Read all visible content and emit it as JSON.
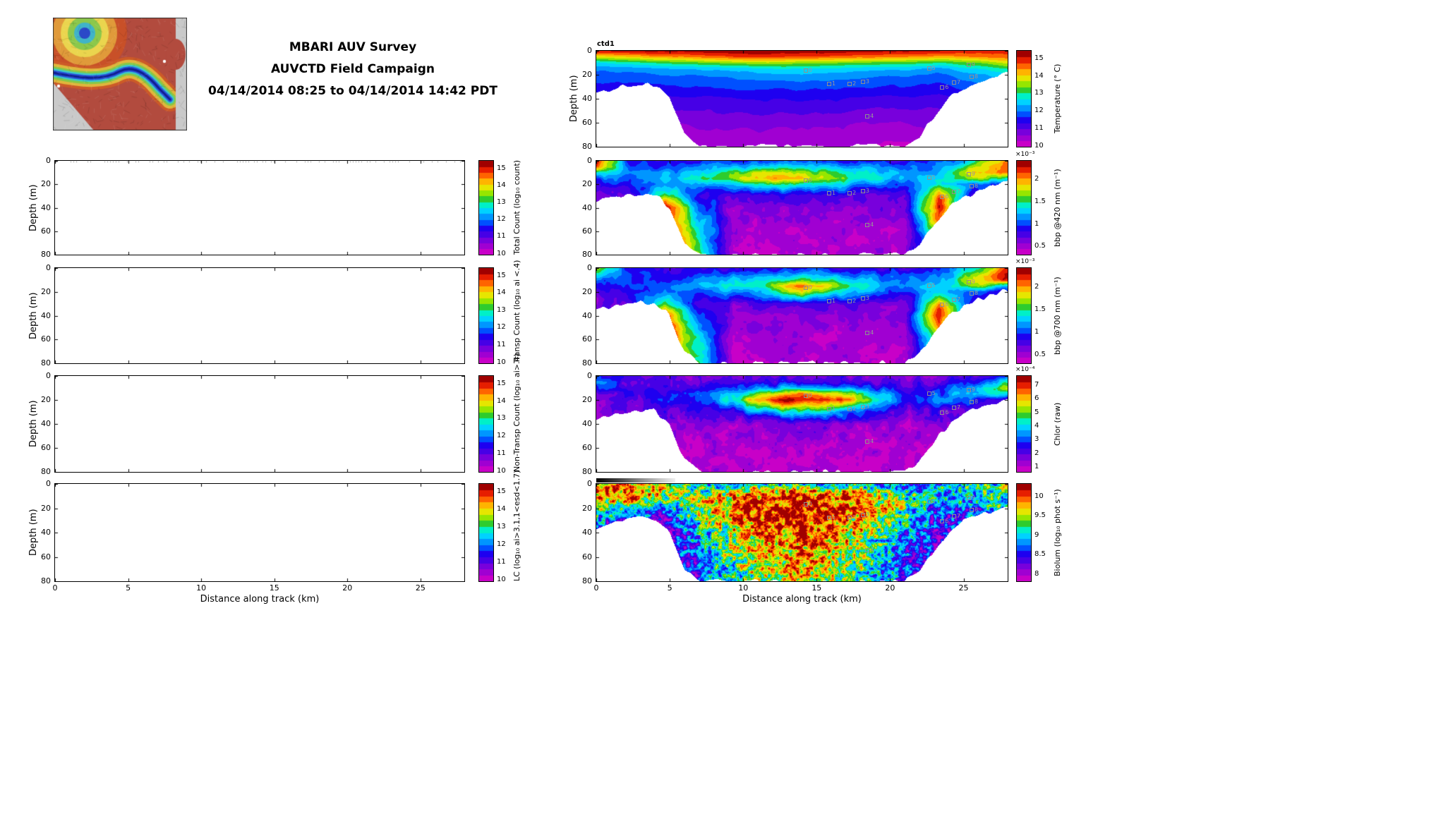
{
  "title": {
    "line1": "MBARI AUV Survey",
    "line2": "AUVCTD Field Campaign",
    "line3": "04/14/2014 08:25 to 04/14/2014 14:42 PDT"
  },
  "chart_data": {
    "type": "heatmap",
    "x_label": "Distance along track (km)",
    "y_label": "Depth (m)",
    "x_ticks": [
      0,
      5,
      10,
      15,
      20,
      25
    ],
    "y_ticks": [
      0,
      20,
      40,
      60,
      80
    ],
    "x_range": [
      0,
      28
    ],
    "y_range": [
      0,
      80
    ],
    "colormap": [
      "#C800C8",
      "#A000D2",
      "#7800DC",
      "#4600E6",
      "#1E00F0",
      "#0050FF",
      "#0096FF",
      "#00D2FF",
      "#00F0C8",
      "#2ECC2E",
      "#96E600",
      "#E6E600",
      "#FFB400",
      "#FF6400",
      "#E61E00",
      "#A00000"
    ],
    "grid_kms": [
      0,
      2.33,
      4.67,
      7,
      9.33,
      11.67,
      14,
      16.33,
      18.67,
      21,
      23.33,
      25.67,
      28
    ],
    "grid_depths": [
      0,
      5,
      10,
      15,
      20,
      30,
      40,
      60,
      80
    ],
    "bottom_profile": [
      36,
      32,
      29,
      28,
      29,
      40,
      70,
      80,
      80,
      80,
      80,
      80,
      80,
      80,
      80,
      80,
      80,
      80,
      80,
      80,
      80,
      80,
      72,
      55,
      40,
      31,
      26,
      22,
      19
    ],
    "left_panels": [
      {
        "id": "total-count",
        "colorbar_label": "Total Count (log₁₀ count)",
        "colorbar_ticks": [
          10,
          11,
          12,
          13,
          14,
          15
        ],
        "colorbar_range": [
          9.9,
          15.4
        ],
        "empty": true,
        "surface_dots": true
      },
      {
        "id": "transp-count",
        "colorbar_label": "Transp Count (log₁₀ ai <.4)",
        "colorbar_ticks": [
          10,
          11,
          12,
          13,
          14,
          15
        ],
        "colorbar_range": [
          9.9,
          15.4
        ],
        "empty": true,
        "surface_dots": false
      },
      {
        "id": "nontransp-count",
        "colorbar_label": "Non-Transp Count (log₁₀ ai>.4)",
        "colorbar_ticks": [
          10,
          11,
          12,
          13,
          14,
          15
        ],
        "colorbar_range": [
          9.9,
          15.4
        ],
        "empty": true,
        "surface_dots": false
      },
      {
        "id": "lc-count",
        "colorbar_label": "LC (log₁₀ ai>3.1,1<esd<1.7)",
        "colorbar_ticks": [
          10,
          11,
          12,
          13,
          14,
          15
        ],
        "colorbar_range": [
          9.9,
          15.4
        ],
        "empty": true,
        "surface_dots": false
      }
    ],
    "right_panels": [
      {
        "id": "temperature",
        "title": "ctd1",
        "colorbar_label": "Temperature (° C)",
        "exponent": "",
        "colorbar_ticks": [
          10,
          11,
          12,
          13,
          14,
          15
        ],
        "colorbar_range": [
          9.9,
          15.4
        ],
        "range": [
          10,
          15.5
        ],
        "noise_amp": 0.06,
        "noise_freq": 26,
        "seed": 1,
        "grid": [
          [
            15.2,
            15.3,
            15.3,
            15.4,
            15.4,
            15.5,
            15.4,
            15.4,
            15.3,
            15.3,
            15.2,
            15.1,
            15.0
          ],
          [
            13.9,
            14.2,
            14.4,
            14.6,
            14.8,
            14.9,
            14.8,
            14.7,
            14.6,
            14.5,
            14.3,
            14.5,
            14.7
          ],
          [
            12.7,
            13.0,
            13.2,
            13.4,
            13.6,
            13.7,
            13.6,
            13.5,
            13.4,
            13.3,
            13.1,
            13.4,
            13.9
          ],
          [
            12.1,
            12.3,
            12.4,
            12.5,
            12.6,
            12.7,
            12.8,
            12.7,
            12.6,
            12.5,
            12.3,
            12.7,
            13.1
          ],
          [
            11.9,
            12.0,
            12.1,
            12.1,
            12.2,
            12.3,
            12.4,
            12.3,
            12.2,
            12.1,
            12.0,
            12.3,
            12.6
          ],
          [
            11.6,
            11.6,
            11.7,
            11.7,
            11.8,
            11.8,
            11.8,
            11.8,
            11.7,
            11.7,
            11.6,
            11.9,
            12.1
          ],
          [
            11.2,
            11.2,
            11.3,
            11.3,
            11.3,
            11.4,
            11.4,
            11.4,
            11.3,
            11.3,
            11.3,
            11.5,
            11.7
          ],
          [
            10.7,
            10.7,
            10.7,
            10.8,
            10.8,
            10.8,
            10.8,
            10.8,
            10.7,
            10.7,
            10.8,
            10.9,
            11.0
          ],
          [
            10.3,
            10.3,
            10.3,
            10.4,
            10.4,
            10.4,
            10.4,
            10.4,
            10.3,
            10.3,
            10.4,
            10.4,
            10.5
          ]
        ]
      },
      {
        "id": "bbp420",
        "title": "",
        "colorbar_label": "bbp @420 nm (m⁻¹)",
        "exponent": "×10⁻³",
        "colorbar_ticks": [
          0.5,
          1,
          1.5,
          2
        ],
        "colorbar_range": [
          0.3,
          2.4
        ],
        "range": [
          0.3,
          2.6
        ],
        "noise_amp": 0.12,
        "noise_freq": 14,
        "seed": 2,
        "grid": [
          [
            2.4,
            1.0,
            0.9,
            0.9,
            1.0,
            1.0,
            1.1,
            1.0,
            0.9,
            0.9,
            1.0,
            1.5,
            2.3
          ],
          [
            2.2,
            1.1,
            1.0,
            1.2,
            1.3,
            1.4,
            1.4,
            1.3,
            1.2,
            1.1,
            1.2,
            1.8,
            2.4
          ],
          [
            1.5,
            1.2,
            1.2,
            1.4,
            1.7,
            1.9,
            1.8,
            1.6,
            1.4,
            1.2,
            1.3,
            2.0,
            2.3
          ],
          [
            1.1,
            1.1,
            1.3,
            1.5,
            1.8,
            2.1,
            2.0,
            1.7,
            1.5,
            1.2,
            1.5,
            1.9,
            1.5
          ],
          [
            0.9,
            1.0,
            1.2,
            1.2,
            1.4,
            1.6,
            1.5,
            1.4,
            1.2,
            1.0,
            1.6,
            1.2,
            0.9
          ],
          [
            0.7,
            0.8,
            1.8,
            0.9,
            0.8,
            0.8,
            0.8,
            0.8,
            0.7,
            0.7,
            2.3,
            0.8,
            0.7
          ],
          [
            0.6,
            0.7,
            2.5,
            1.2,
            0.6,
            0.6,
            0.6,
            0.6,
            0.6,
            0.6,
            2.5,
            0.7,
            0.6
          ],
          [
            0.5,
            0.6,
            2.5,
            1.5,
            0.5,
            0.5,
            0.5,
            0.5,
            0.5,
            0.5,
            2.0,
            0.6,
            0.5
          ],
          [
            0.45,
            0.5,
            2.3,
            1.8,
            0.45,
            0.45,
            0.45,
            0.45,
            0.45,
            0.5,
            1.5,
            0.6,
            0.5
          ]
        ]
      },
      {
        "id": "bbp700",
        "title": "",
        "colorbar_label": "bbp @700 nm (m⁻¹)",
        "exponent": "×10⁻³",
        "colorbar_ticks": [
          0.5,
          1,
          1.5,
          2
        ],
        "colorbar_range": [
          0.3,
          2.4
        ],
        "range": [
          0.3,
          2.6
        ],
        "noise_amp": 0.12,
        "noise_freq": 14,
        "seed": 3,
        "grid": [
          [
            2.0,
            0.9,
            0.8,
            0.8,
            0.9,
            0.9,
            1.0,
            0.9,
            0.9,
            0.8,
            1.0,
            1.4,
            2.4
          ],
          [
            1.6,
            1.0,
            0.9,
            1.0,
            1.1,
            1.2,
            1.3,
            1.2,
            1.1,
            1.0,
            1.1,
            1.7,
            2.5
          ],
          [
            1.2,
            1.0,
            1.0,
            1.2,
            1.3,
            1.5,
            1.7,
            1.5,
            1.3,
            1.1,
            1.2,
            1.9,
            2.4
          ],
          [
            1.0,
            1.0,
            1.1,
            1.3,
            1.5,
            1.7,
            2.3,
            1.8,
            1.4,
            1.1,
            1.4,
            1.8,
            1.4
          ],
          [
            0.8,
            0.9,
            1.1,
            1.1,
            1.2,
            1.4,
            2.0,
            1.5,
            1.2,
            0.9,
            1.5,
            1.1,
            0.9
          ],
          [
            0.6,
            0.8,
            1.6,
            0.8,
            0.7,
            0.8,
            0.9,
            0.8,
            0.7,
            0.6,
            2.2,
            0.8,
            0.6
          ],
          [
            0.55,
            0.7,
            2.4,
            1.1,
            0.6,
            0.6,
            0.6,
            0.6,
            0.6,
            0.55,
            2.5,
            0.7,
            0.55
          ],
          [
            0.5,
            0.6,
            2.5,
            1.4,
            0.5,
            0.5,
            0.5,
            0.5,
            0.5,
            0.5,
            1.9,
            0.6,
            0.5
          ],
          [
            0.45,
            0.5,
            2.2,
            1.7,
            0.45,
            0.45,
            0.45,
            0.45,
            0.45,
            0.5,
            1.4,
            0.55,
            0.5
          ]
        ]
      },
      {
        "id": "chlor",
        "title": "",
        "colorbar_label": "Chlor (raw)",
        "exponent": "×10⁻⁴",
        "colorbar_ticks": [
          1,
          2,
          3,
          4,
          5,
          6,
          7
        ],
        "colorbar_range": [
          0.6,
          7.6
        ],
        "range": [
          0.5,
          7.8
        ],
        "noise_amp": 0.5,
        "noise_freq": 12,
        "seed": 4,
        "grid": [
          [
            2.5,
            1.8,
            1.6,
            1.5,
            1.6,
            1.7,
            1.8,
            1.7,
            1.6,
            1.5,
            1.6,
            2.0,
            3.0
          ],
          [
            3.5,
            2.0,
            1.8,
            1.8,
            2.0,
            2.2,
            2.4,
            2.2,
            2.0,
            1.8,
            2.0,
            2.6,
            4.5
          ],
          [
            3.0,
            2.2,
            2.0,
            2.2,
            2.8,
            3.4,
            3.8,
            3.4,
            2.8,
            2.2,
            2.6,
            3.4,
            5.5
          ],
          [
            2.0,
            2.2,
            2.4,
            2.8,
            4.0,
            5.5,
            6.5,
            5.5,
            4.2,
            2.6,
            3.0,
            3.8,
            4.0
          ],
          [
            1.5,
            2.0,
            2.4,
            2.6,
            4.5,
            7.2,
            7.6,
            7.0,
            5.0,
            2.6,
            3.4,
            2.6,
            2.0
          ],
          [
            1.2,
            1.6,
            2.0,
            2.0,
            2.4,
            3.5,
            4.5,
            3.8,
            2.6,
            1.8,
            2.2,
            1.6,
            1.2
          ],
          [
            1.0,
            1.2,
            1.4,
            1.4,
            1.4,
            1.6,
            1.8,
            1.6,
            1.4,
            1.2,
            1.4,
            1.2,
            1.0
          ],
          [
            0.8,
            0.9,
            1.0,
            1.0,
            1.0,
            1.0,
            1.1,
            1.0,
            1.0,
            0.9,
            1.0,
            0.9,
            0.8
          ],
          [
            0.7,
            0.8,
            0.8,
            0.8,
            0.8,
            0.8,
            0.9,
            0.8,
            0.8,
            0.8,
            0.8,
            0.8,
            0.7
          ]
        ]
      },
      {
        "id": "biolum",
        "title": "",
        "colorbar_label": "Biolum (log₁₀ phot s⁻¹)",
        "exponent": "",
        "colorbar_ticks": [
          8,
          8.5,
          9,
          9.5,
          10
        ],
        "colorbar_range": [
          7.8,
          10.3
        ],
        "range": [
          7.8,
          10.3
        ],
        "noise_amp": 0.6,
        "noise_freq": 5,
        "seed": 5,
        "grid": [
          [
            9.9,
            9.8,
            9.5,
            9.0,
            8.8,
            8.9,
            9.0,
            8.9,
            8.8,
            8.7,
            8.8,
            9.0,
            9.2
          ],
          [
            10.1,
            10.0,
            9.6,
            9.2,
            9.4,
            9.6,
            9.7,
            9.6,
            9.4,
            9.0,
            8.8,
            9.2,
            9.4
          ],
          [
            10.0,
            9.9,
            9.4,
            9.3,
            9.7,
            9.9,
            10.0,
            9.9,
            9.6,
            9.1,
            8.7,
            9.0,
            9.3
          ],
          [
            9.6,
            9.5,
            9.2,
            9.4,
            9.9,
            10.1,
            10.2,
            10.0,
            9.8,
            9.2,
            8.8,
            8.9,
            9.1
          ],
          [
            9.2,
            9.0,
            8.8,
            9.5,
            10.0,
            10.2,
            10.2,
            10.1,
            9.9,
            9.3,
            8.6,
            8.7,
            8.9
          ],
          [
            8.8,
            8.4,
            8.2,
            9.2,
            9.8,
            10.0,
            10.1,
            9.9,
            9.6,
            9.0,
            8.4,
            8.5,
            8.7
          ],
          [
            8.6,
            8.2,
            8.0,
            8.8,
            9.6,
            9.9,
            10.0,
            9.8,
            9.4,
            8.8,
            8.3,
            8.4,
            8.6
          ],
          [
            8.4,
            8.1,
            8.2,
            8.6,
            9.3,
            9.7,
            9.8,
            9.6,
            9.2,
            8.6,
            8.2,
            8.3,
            8.5
          ],
          [
            8.3,
            8.0,
            8.4,
            8.5,
            9.1,
            9.5,
            9.6,
            9.4,
            9.0,
            8.5,
            8.1,
            8.2,
            8.4
          ]
        ]
      }
    ],
    "markers": [
      {
        "label": "0",
        "km": 14.2,
        "depth": 16
      },
      {
        "label": "1",
        "km": 15.8,
        "depth": 27
      },
      {
        "label": "2",
        "km": 17.2,
        "depth": 27
      },
      {
        "label": "3",
        "km": 18.1,
        "depth": 25
      },
      {
        "label": "4",
        "km": 18.4,
        "depth": 54
      },
      {
        "label": "5",
        "km": 22.6,
        "depth": 14
      },
      {
        "label": "6",
        "km": 23.5,
        "depth": 30
      },
      {
        "label": "7",
        "km": 24.3,
        "depth": 26
      },
      {
        "label": "8",
        "km": 25.5,
        "depth": 21
      },
      {
        "label": "9",
        "km": 25.3,
        "depth": 11
      }
    ]
  }
}
